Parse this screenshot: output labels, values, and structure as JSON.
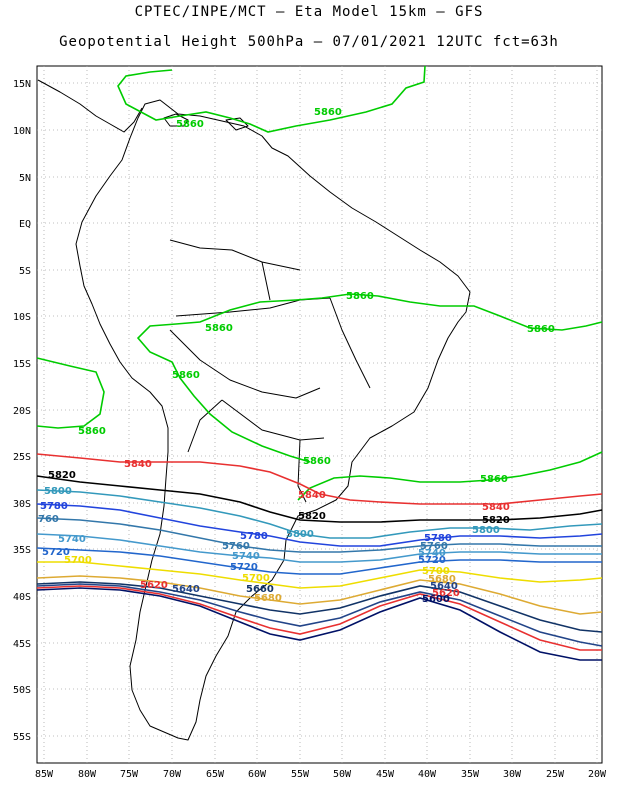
{
  "title_line1": "CPTEC/INPE/MCT –  Eta Model 15km – GFS",
  "title_line2": "Geopotential Height 500hPa – 07/01/2021 12UTC fct=63h",
  "lat_ticks": [
    "15N",
    "10N",
    "5N",
    "EQ",
    "5S",
    "10S",
    "15S",
    "20S",
    "25S",
    "30S",
    "35S",
    "40S",
    "45S",
    "50S",
    "55S"
  ],
  "lon_ticks": [
    "85W",
    "80W",
    "75W",
    "70W",
    "65W",
    "60W",
    "55W",
    "50W",
    "45W",
    "40W",
    "35W",
    "30W",
    "25W",
    "20W"
  ],
  "contour_labels": {
    "c5860": "5860",
    "c5840": "5840",
    "c5820": "5820",
    "c5800": "5800",
    "c5780": "5780",
    "c5760": "5760",
    "c5740": "5740",
    "c5720": "5720",
    "c5700": "5700",
    "c5680": "5680",
    "c5660": "5660",
    "c5640": "5640",
    "c5620": "5620",
    "c5600": "5600",
    "c760": "760"
  },
  "colors": {
    "c5860": "#00cc00",
    "c5840": "#e83030",
    "c5820": "#000000",
    "c5800": "#3399bb",
    "c5780": "#2244dd",
    "c5760": "#3377aa",
    "c5740": "#4499cc",
    "c5720": "#2266cc",
    "c5700": "#eedd00",
    "c5680": "#ddaa33",
    "c5660": "#113366",
    "c5640": "#224488",
    "c5620": "#e83030",
    "c5600": "#001166"
  }
}
